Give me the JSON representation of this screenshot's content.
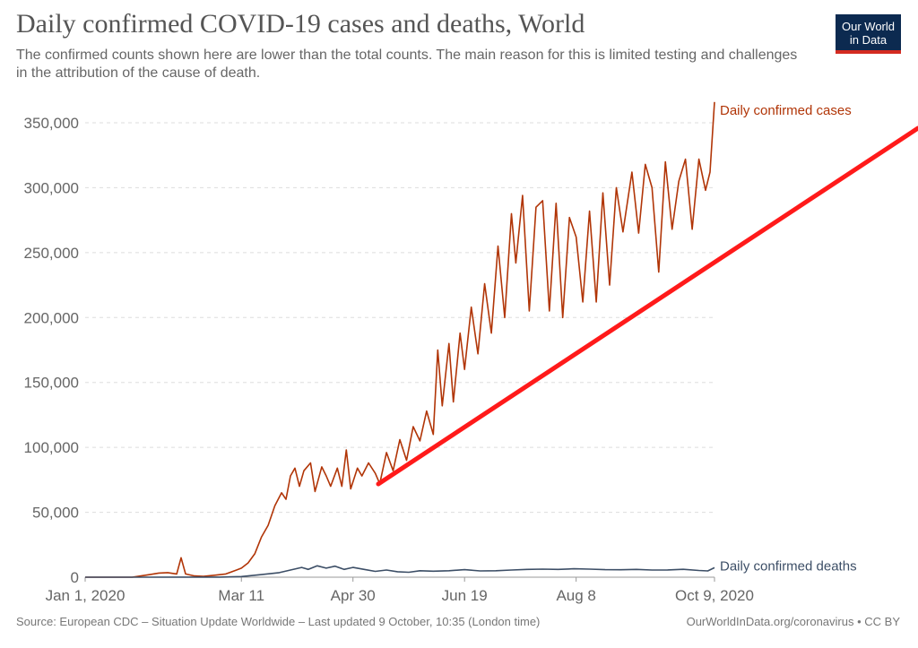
{
  "header": {
    "title": "Daily confirmed COVID-19 cases and deaths, World",
    "subtitle": "The confirmed counts shown here are lower than the total counts. The main reason for this is limited testing and challenges in the attribution of the cause of death."
  },
  "logo": {
    "line1": "Our World",
    "line2": "in Data"
  },
  "footer": {
    "source": "Source: European CDC – Situation Update Worldwide – Last updated 9 October, 10:35 (London time)",
    "credit": "OurWorldInData.org/coronavirus • CC BY"
  },
  "chart_data": {
    "type": "line",
    "title": "Daily confirmed COVID-19 cases and deaths, World",
    "x_start": "2020-01-01",
    "x_end": "2020-10-09",
    "x_ticks": [
      "Jan 1, 2020",
      "Mar 11",
      "Apr 30",
      "Jun 19",
      "Aug 8",
      "Oct 9, 2020"
    ],
    "x_tick_dates": [
      "2020-01-01",
      "2020-03-11",
      "2020-04-30",
      "2020-06-19",
      "2020-08-08",
      "2020-10-09"
    ],
    "ylim": [
      0,
      350000
    ],
    "y_ticks": [
      0,
      50000,
      100000,
      150000,
      200000,
      250000,
      300000,
      350000
    ],
    "y_tick_labels": [
      "0",
      "50,000",
      "100,000",
      "150,000",
      "200,000",
      "250,000",
      "300,000",
      "350,000"
    ],
    "grid": "horizontal dashed",
    "series": [
      {
        "name": "Daily confirmed cases",
        "color": "#b13507",
        "points": [
          [
            "2020-01-01",
            0
          ],
          [
            "2020-01-22",
            0
          ],
          [
            "2020-01-26",
            1000
          ],
          [
            "2020-01-30",
            2000
          ],
          [
            "2020-02-03",
            3200
          ],
          [
            "2020-02-07",
            3500
          ],
          [
            "2020-02-11",
            2500
          ],
          [
            "2020-02-13",
            15000
          ],
          [
            "2020-02-15",
            2500
          ],
          [
            "2020-02-19",
            1000
          ],
          [
            "2020-02-23",
            600
          ],
          [
            "2020-02-28",
            1500
          ],
          [
            "2020-03-04",
            2500
          ],
          [
            "2020-03-08",
            5000
          ],
          [
            "2020-03-11",
            7000
          ],
          [
            "2020-03-14",
            11000
          ],
          [
            "2020-03-17",
            18000
          ],
          [
            "2020-03-20",
            31000
          ],
          [
            "2020-03-23",
            40000
          ],
          [
            "2020-03-26",
            55000
          ],
          [
            "2020-03-29",
            65000
          ],
          [
            "2020-03-31",
            60000
          ],
          [
            "2020-04-02",
            78000
          ],
          [
            "2020-04-04",
            84000
          ],
          [
            "2020-04-06",
            70000
          ],
          [
            "2020-04-08",
            82000
          ],
          [
            "2020-04-11",
            88000
          ],
          [
            "2020-04-13",
            66000
          ],
          [
            "2020-04-16",
            85000
          ],
          [
            "2020-04-18",
            78000
          ],
          [
            "2020-04-20",
            70000
          ],
          [
            "2020-04-23",
            84000
          ],
          [
            "2020-04-25",
            70000
          ],
          [
            "2020-04-27",
            98000
          ],
          [
            "2020-04-29",
            68000
          ],
          [
            "2020-05-02",
            84000
          ],
          [
            "2020-05-04",
            78000
          ],
          [
            "2020-05-07",
            88000
          ],
          [
            "2020-05-10",
            80000
          ],
          [
            "2020-05-12",
            72000
          ],
          [
            "2020-05-15",
            96000
          ],
          [
            "2020-05-18",
            82000
          ],
          [
            "2020-05-21",
            106000
          ],
          [
            "2020-05-24",
            90000
          ],
          [
            "2020-05-27",
            116000
          ],
          [
            "2020-05-30",
            105000
          ],
          [
            "2020-06-02",
            128000
          ],
          [
            "2020-06-05",
            110000
          ],
          [
            "2020-06-07",
            175000
          ],
          [
            "2020-06-09",
            132000
          ],
          [
            "2020-06-12",
            180000
          ],
          [
            "2020-06-14",
            135000
          ],
          [
            "2020-06-17",
            188000
          ],
          [
            "2020-06-19",
            160000
          ],
          [
            "2020-06-22",
            208000
          ],
          [
            "2020-06-25",
            172000
          ],
          [
            "2020-06-28",
            226000
          ],
          [
            "2020-07-01",
            188000
          ],
          [
            "2020-07-04",
            255000
          ],
          [
            "2020-07-07",
            200000
          ],
          [
            "2020-07-10",
            280000
          ],
          [
            "2020-07-12",
            242000
          ],
          [
            "2020-07-15",
            294000
          ],
          [
            "2020-07-18",
            205000
          ],
          [
            "2020-07-21",
            285000
          ],
          [
            "2020-07-24",
            290000
          ],
          [
            "2020-07-27",
            205000
          ],
          [
            "2020-07-30",
            288000
          ],
          [
            "2020-08-02",
            200000
          ],
          [
            "2020-08-05",
            277000
          ],
          [
            "2020-08-08",
            262000
          ],
          [
            "2020-08-11",
            212000
          ],
          [
            "2020-08-14",
            282000
          ],
          [
            "2020-08-17",
            212000
          ],
          [
            "2020-08-20",
            296000
          ],
          [
            "2020-08-23",
            225000
          ],
          [
            "2020-08-26",
            300000
          ],
          [
            "2020-08-29",
            266000
          ],
          [
            "2020-09-02",
            312000
          ],
          [
            "2020-09-05",
            265000
          ],
          [
            "2020-09-08",
            318000
          ],
          [
            "2020-09-11",
            300000
          ],
          [
            "2020-09-14",
            235000
          ],
          [
            "2020-09-17",
            320000
          ],
          [
            "2020-09-20",
            268000
          ],
          [
            "2020-09-23",
            305000
          ],
          [
            "2020-09-26",
            322000
          ],
          [
            "2020-09-29",
            268000
          ],
          [
            "2020-10-02",
            322000
          ],
          [
            "2020-10-05",
            298000
          ],
          [
            "2020-10-07",
            312000
          ],
          [
            "2020-10-09",
            366000
          ]
        ]
      },
      {
        "name": "Daily confirmed deaths",
        "color": "#3c4e66",
        "points": [
          [
            "2020-01-01",
            0
          ],
          [
            "2020-01-22",
            0
          ],
          [
            "2020-02-15",
            100
          ],
          [
            "2020-03-01",
            100
          ],
          [
            "2020-03-11",
            500
          ],
          [
            "2020-03-20",
            2000
          ],
          [
            "2020-03-28",
            3500
          ],
          [
            "2020-04-02",
            5500
          ],
          [
            "2020-04-07",
            7500
          ],
          [
            "2020-04-10",
            6000
          ],
          [
            "2020-04-14",
            8800
          ],
          [
            "2020-04-18",
            7000
          ],
          [
            "2020-04-22",
            8500
          ],
          [
            "2020-04-26",
            6000
          ],
          [
            "2020-04-30",
            7500
          ],
          [
            "2020-05-05",
            6000
          ],
          [
            "2020-05-10",
            4500
          ],
          [
            "2020-05-15",
            5500
          ],
          [
            "2020-05-20",
            4200
          ],
          [
            "2020-05-25",
            3800
          ],
          [
            "2020-05-30",
            5000
          ],
          [
            "2020-06-05",
            4600
          ],
          [
            "2020-06-12",
            5000
          ],
          [
            "2020-06-19",
            5800
          ],
          [
            "2020-06-26",
            4800
          ],
          [
            "2020-07-03",
            5000
          ],
          [
            "2020-07-10",
            5500
          ],
          [
            "2020-07-17",
            6000
          ],
          [
            "2020-07-24",
            6200
          ],
          [
            "2020-07-31",
            6000
          ],
          [
            "2020-08-07",
            6500
          ],
          [
            "2020-08-14",
            6200
          ],
          [
            "2020-08-21",
            5800
          ],
          [
            "2020-08-28",
            5700
          ],
          [
            "2020-09-04",
            6000
          ],
          [
            "2020-09-11",
            5500
          ],
          [
            "2020-09-18",
            5600
          ],
          [
            "2020-09-25",
            6100
          ],
          [
            "2020-10-02",
            5200
          ],
          [
            "2020-10-06",
            4800
          ],
          [
            "2020-10-09",
            7300
          ]
        ]
      }
    ]
  },
  "overlay": {
    "type": "trend-arrow-line",
    "color": "#ff1a1a"
  }
}
